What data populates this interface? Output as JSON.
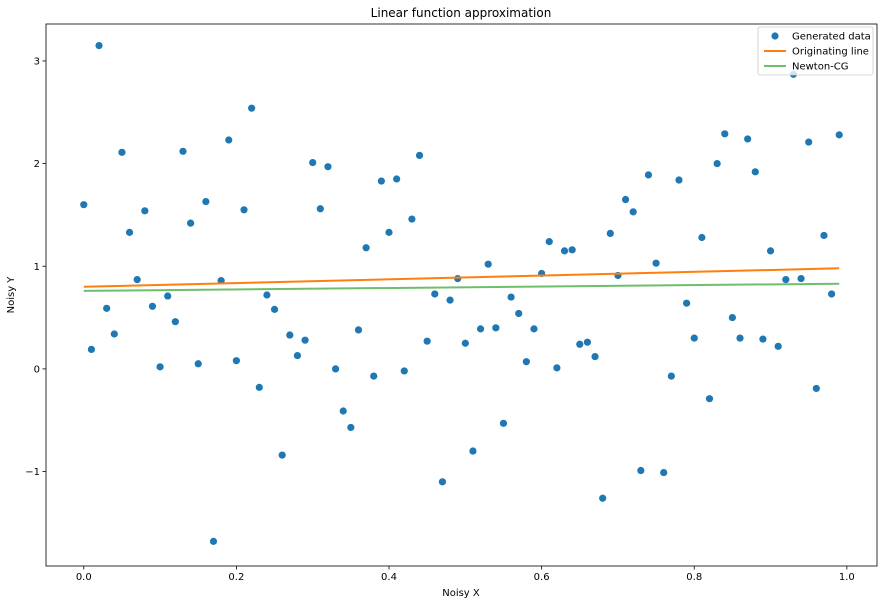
{
  "chart_data": {
    "type": "scatter",
    "title": "Linear function approximation",
    "xlabel": "Noisy X",
    "ylabel": "Noisy Y",
    "xlim": [
      -0.0495,
      1.0395
    ],
    "ylim": [
      -1.92,
      3.36
    ],
    "xticks": [
      0.0,
      0.2,
      0.4,
      0.6,
      0.8,
      1.0
    ],
    "xtick_labels": [
      "0.0",
      "0.2",
      "0.4",
      "0.6",
      "0.8",
      "1.0"
    ],
    "yticks": [
      -1,
      0,
      1,
      2,
      3
    ],
    "ytick_labels": [
      "−1",
      "0",
      "1",
      "2",
      "3"
    ],
    "grid": false,
    "legend_position": "top-right",
    "series": [
      {
        "name": "Generated data",
        "kind": "scatter",
        "color": "#1f77b4",
        "x": [
          0.0,
          0.01,
          0.02,
          0.03,
          0.04,
          0.05,
          0.06,
          0.07,
          0.08,
          0.09,
          0.1,
          0.11,
          0.12,
          0.13,
          0.14,
          0.15,
          0.16,
          0.17,
          0.18,
          0.19,
          0.2,
          0.21,
          0.22,
          0.23,
          0.24,
          0.25,
          0.26,
          0.27,
          0.28,
          0.29,
          0.3,
          0.31,
          0.32,
          0.33,
          0.34,
          0.35,
          0.36,
          0.37,
          0.38,
          0.39,
          0.4,
          0.41,
          0.42,
          0.43,
          0.44,
          0.45,
          0.46,
          0.47,
          0.48,
          0.49,
          0.5,
          0.51,
          0.52,
          0.53,
          0.54,
          0.55,
          0.56,
          0.57,
          0.58,
          0.59,
          0.6,
          0.61,
          0.62,
          0.63,
          0.64,
          0.65,
          0.66,
          0.67,
          0.68,
          0.69,
          0.7,
          0.71,
          0.72,
          0.73,
          0.74,
          0.75,
          0.76,
          0.77,
          0.78,
          0.79,
          0.8,
          0.81,
          0.82,
          0.83,
          0.84,
          0.85,
          0.86,
          0.87,
          0.88,
          0.89,
          0.9,
          0.91,
          0.92,
          0.93,
          0.94,
          0.95,
          0.96,
          0.97,
          0.98,
          0.99
        ],
        "y": [
          1.6,
          0.19,
          3.15,
          0.59,
          0.34,
          2.11,
          1.33,
          0.87,
          1.54,
          0.61,
          0.02,
          0.71,
          0.46,
          2.12,
          1.42,
          0.05,
          1.63,
          -1.68,
          0.86,
          2.23,
          0.08,
          1.55,
          2.54,
          -0.18,
          0.72,
          0.58,
          -0.84,
          0.33,
          0.13,
          0.28,
          2.01,
          1.56,
          1.97,
          0.0,
          -0.41,
          -0.57,
          0.38,
          1.18,
          -0.07,
          1.83,
          1.33,
          1.85,
          -0.02,
          1.46,
          2.08,
          0.27,
          0.73,
          -1.1,
          0.67,
          0.88,
          0.25,
          -0.8,
          0.39,
          1.02,
          0.4,
          -0.53,
          0.7,
          0.54,
          0.07,
          0.39,
          0.93,
          1.24,
          0.01,
          1.15,
          1.16,
          0.24,
          0.26,
          0.12,
          -1.26,
          1.32,
          0.91,
          1.65,
          1.53,
          -0.99,
          1.89,
          1.03,
          -1.01,
          -0.07,
          1.84,
          0.64,
          0.3,
          1.28,
          -0.29,
          2.0,
          2.29,
          0.5,
          0.3,
          2.24,
          1.92,
          0.29,
          1.15,
          0.22,
          0.87,
          2.87,
          0.88,
          2.21,
          -0.19,
          1.3,
          0.73,
          2.28
        ]
      },
      {
        "name": "Originating line",
        "kind": "line",
        "color": "#ff7f0e",
        "x": [
          0.0,
          0.99
        ],
        "y": [
          0.8,
          0.98
        ]
      },
      {
        "name": "Newton-CG",
        "kind": "line",
        "color": "#6fbf6a",
        "x": [
          0.0,
          0.99
        ],
        "y": [
          0.76,
          0.83
        ]
      }
    ]
  }
}
